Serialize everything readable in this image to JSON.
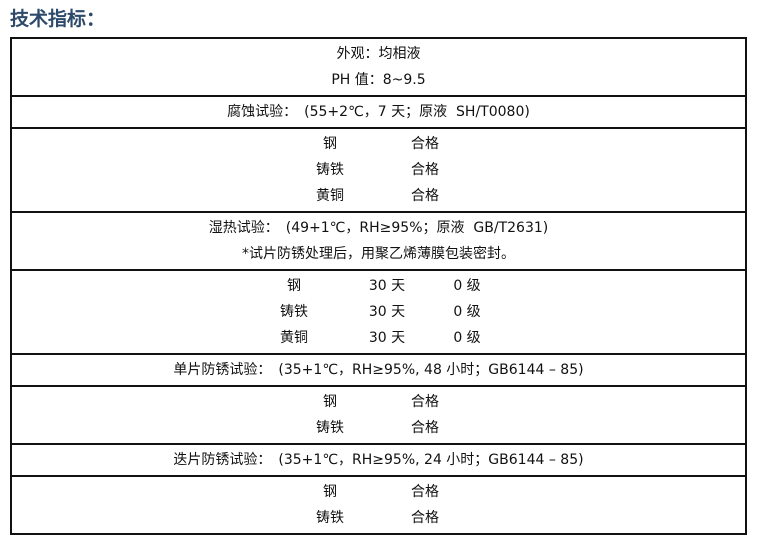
{
  "title": "技术指标：",
  "groups": [
    {
      "lines": [
        "外观：均相液",
        "PH 值：8~9.5"
      ]
    },
    {
      "lines": [
        "腐蚀试验：　(55+2℃，7 天；原液  SH/T0080)"
      ]
    },
    {
      "rows": [
        [
          "钢",
          "合格"
        ],
        [
          "铸铁",
          "合格"
        ],
        [
          "黄铜",
          "合格"
        ]
      ]
    },
    {
      "lines": [
        "湿热试验：　(49+1℃，RH≥95%；原液  GB/T2631)",
        "*试片防锈处理后，用聚乙烯薄膜包装密封。"
      ]
    },
    {
      "rows": [
        [
          "钢",
          "30 天",
          "0 级"
        ],
        [
          "铸铁",
          "30 天",
          "0 级"
        ],
        [
          "黄铜",
          "30 天",
          "0 级"
        ]
      ]
    },
    {
      "lines": [
        "单片防锈试验：　(35+1℃，RH≥95%, 48 小时；GB6144 – 85)"
      ]
    },
    {
      "rows": [
        [
          "钢",
          "合格"
        ],
        [
          "铸铁",
          "合格"
        ]
      ]
    },
    {
      "lines": [
        "迭片防锈试验：　(35+1℃，RH≥95%, 24 小时；GB6144 – 85)"
      ]
    },
    {
      "rows": [
        [
          "钢",
          "合格"
        ],
        [
          "铸铁",
          "合格"
        ]
      ]
    }
  ]
}
